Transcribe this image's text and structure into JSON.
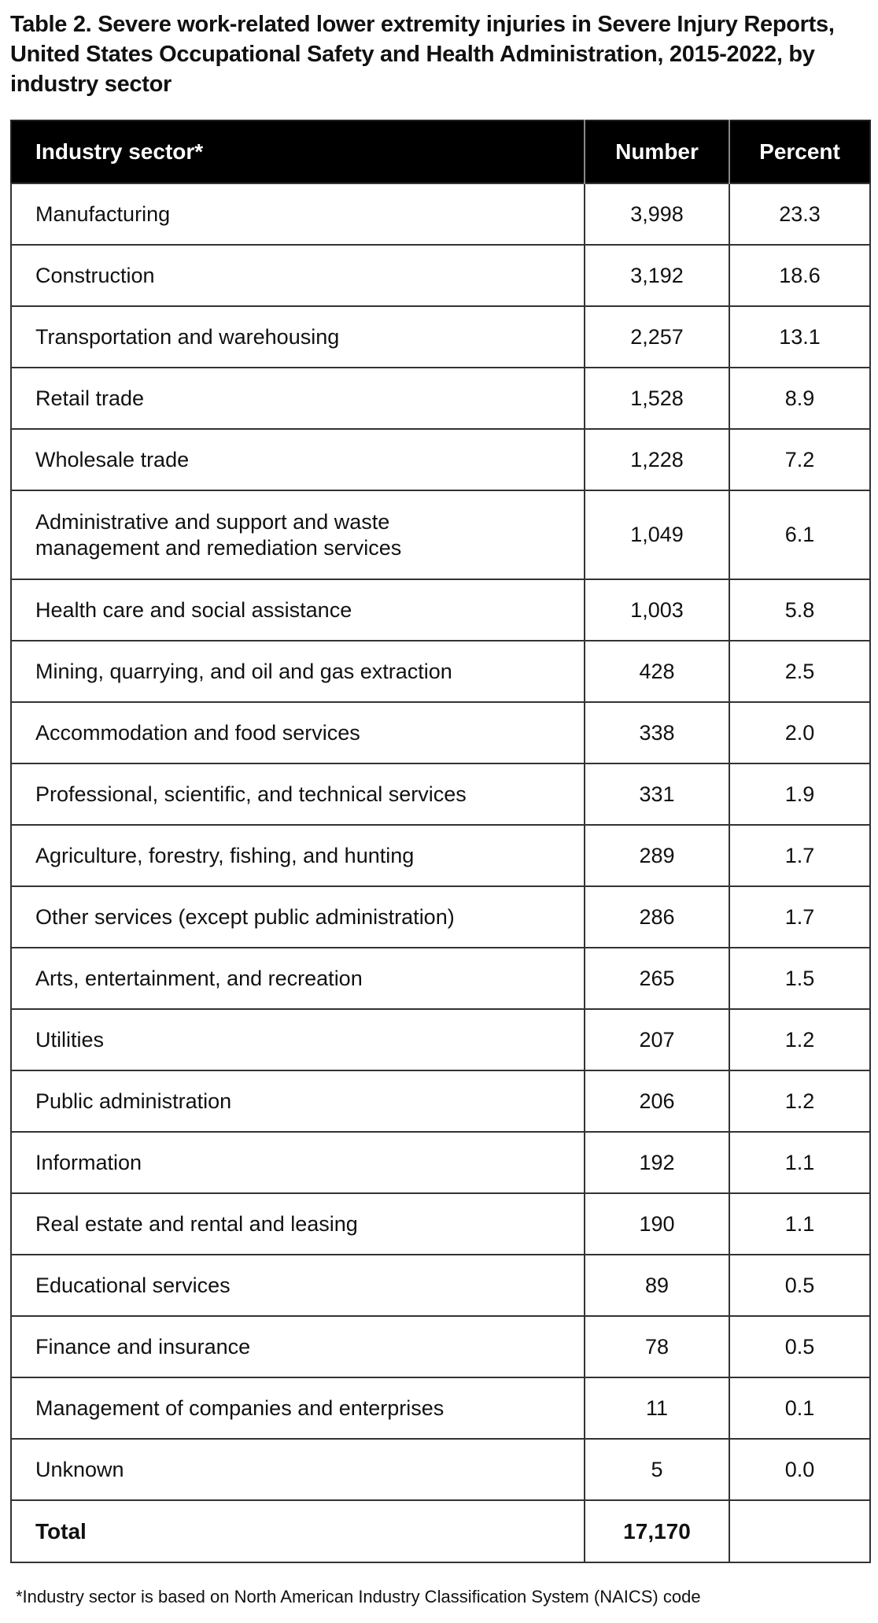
{
  "title": "Table 2. Severe work-related lower extremity injuries in Severe Injury Reports, United States Occupational Safety and Health Administration, 2015-2022, by industry sector",
  "headers": {
    "sector": "Industry sector*",
    "number": "Number",
    "percent": "Percent"
  },
  "rows": [
    {
      "sector": "Manufacturing",
      "number": "3,998",
      "percent": "23.3"
    },
    {
      "sector": "Construction",
      "number": "3,192",
      "percent": "18.6"
    },
    {
      "sector": "Transportation and warehousing",
      "number": "2,257",
      "percent": "13.1"
    },
    {
      "sector": "Retail trade",
      "number": "1,528",
      "percent": "8.9"
    },
    {
      "sector": "Wholesale trade",
      "number": "1,228",
      "percent": "7.2"
    },
    {
      "sector": "Administrative and support and waste management and remediation services",
      "number": "1,049",
      "percent": "6.1"
    },
    {
      "sector": "Health care and social assistance",
      "number": "1,003",
      "percent": "5.8"
    },
    {
      "sector": "Mining, quarrying, and oil and gas extraction",
      "number": "428",
      "percent": "2.5"
    },
    {
      "sector": "Accommodation and food services",
      "number": "338",
      "percent": "2.0"
    },
    {
      "sector": "Professional, scientific, and technical services",
      "number": "331",
      "percent": "1.9"
    },
    {
      "sector": "Agriculture, forestry, fishing, and hunting",
      "number": "289",
      "percent": "1.7"
    },
    {
      "sector": "Other services (except public administration)",
      "number": "286",
      "percent": "1.7"
    },
    {
      "sector": "Arts, entertainment, and recreation",
      "number": "265",
      "percent": "1.5"
    },
    {
      "sector": "Utilities",
      "number": "207",
      "percent": "1.2"
    },
    {
      "sector": "Public administration",
      "number": "206",
      "percent": "1.2"
    },
    {
      "sector": "Information",
      "number": "192",
      "percent": "1.1"
    },
    {
      "sector": "Real estate and rental and leasing",
      "number": "190",
      "percent": "1.1"
    },
    {
      "sector": "Educational services",
      "number": "89",
      "percent": "0.5"
    },
    {
      "sector": "Finance and insurance",
      "number": "78",
      "percent": "0.5"
    },
    {
      "sector": "Management of companies and enterprises",
      "number": "11",
      "percent": "0.1"
    },
    {
      "sector": "Unknown",
      "number": "5",
      "percent": "0.0"
    }
  ],
  "total": {
    "label": "Total",
    "number": "17,170",
    "percent": ""
  },
  "footnote": "*Industry sector is based on North American Industry Classification System (NAICS) code"
}
